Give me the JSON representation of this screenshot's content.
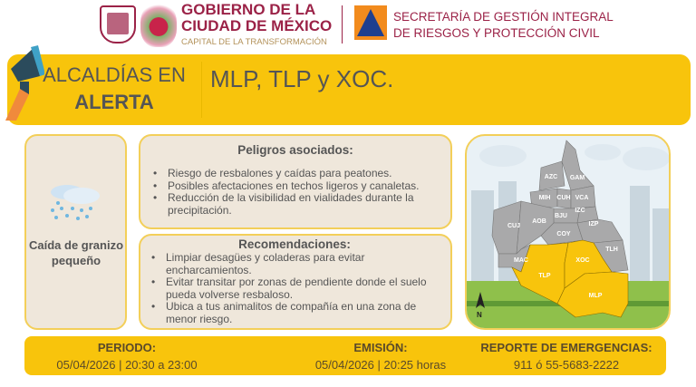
{
  "header": {
    "gov_line1": "GOBIERNO DE LA",
    "gov_line2": "CIUDAD DE MÉXICO",
    "gov_tagline": "CAPITAL DE LA TRANSFORMACIÓN",
    "sec_line1": "SECRETARÍA DE GESTIÓN INTEGRAL",
    "sec_line2": "DE RIESGOS Y PROTECCIÓN CIVIL"
  },
  "banner": {
    "label_line1": "ALCALDÍAS EN",
    "label_line2": "ALERTA",
    "alcaldias": "MLP, TLP y XOC.",
    "icon": "megaphone-icon"
  },
  "phenomenon": {
    "icon": "hail-cloud-icon",
    "label": "Caída de granizo pequeño"
  },
  "hazards": {
    "title": "Peligros asociados:",
    "items": [
      "Riesgo de resbalones y caídas para peatones.",
      "Posibles afectaciones en techos ligeros y canaletas.",
      "Reducción de la visibilidad en vialidades durante la precipitación."
    ]
  },
  "recommendations": {
    "title": "Recomendaciones:",
    "items": [
      "Limpiar desagües y coladeras para evitar encharcamientos.",
      "Evitar transitar por zonas de pendiente donde el suelo pueda volverse resbaloso.",
      "Ubica a tus animalitos de compañía en una zona de menor riesgo."
    ]
  },
  "map": {
    "north": "N",
    "alert_color": "#f8c40c",
    "normal_color": "#a9a9aa",
    "labels": {
      "AZC": "AZC",
      "GAM": "GAM",
      "MH": "MIH",
      "CUH": "CUH",
      "VCA": "VCA",
      "IZC": "IZC",
      "BJU": "BJU",
      "CUJ": "CUJ",
      "AOB": "AOB",
      "IZP": "IZP",
      "COY": "COY",
      "TLH": "TLH",
      "MAC": "MAC",
      "XOC": "XOC",
      "TLP": "TLP",
      "MLP": "MLP"
    }
  },
  "footer": {
    "period_label": "PERIODO:",
    "period_value": "05/04/2026 | 20:30 a 23:00",
    "emission_label": "EMISIÓN:",
    "emission_value": "05/04/2026 | 20:25 horas",
    "emergency_label": "REPORTE DE EMERGENCIAS:",
    "emergency_value": "911 ó 55-5683-2222"
  },
  "colors": {
    "yellow": "#f8c40c",
    "maroon": "#9b2247",
    "card": "#efe7db"
  }
}
